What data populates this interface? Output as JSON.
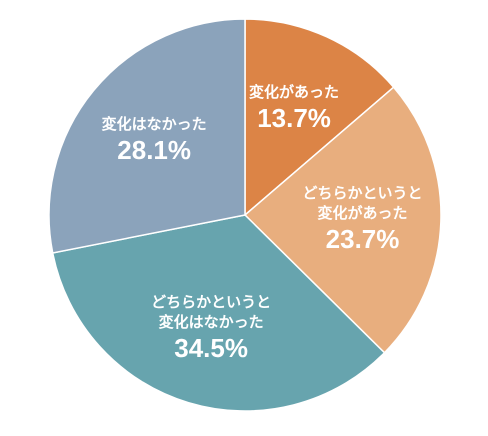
{
  "chart_data": {
    "type": "pie",
    "categories": [
      "変化があった",
      "どちらかというと\n変化があった",
      "どちらかというと\n変化はなかった",
      "変化はなかった"
    ],
    "values": [
      13.7,
      23.7,
      34.5,
      28.1
    ],
    "value_labels": [
      "13.7%",
      "23.7%",
      "34.5%",
      "28.1%"
    ],
    "colors": [
      "#dc8446",
      "#e8ae7e",
      "#67a4ae",
      "#8ba3bb"
    ]
  }
}
